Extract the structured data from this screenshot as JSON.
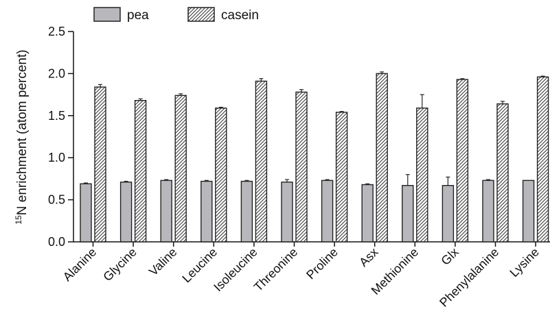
{
  "chart_data": {
    "type": "bar",
    "ylabel": "15N enrichment (atom percent)",
    "ylabel_superscript": "15",
    "ylabel_rest": "N enrichment (atom percent)",
    "xlabel": "",
    "ylim": [
      0,
      2.5
    ],
    "yticks": [
      "0.0",
      "0.5",
      "1.0",
      "1.5",
      "2.0",
      "2.5"
    ],
    "grid": false,
    "legend_position": "top-left",
    "categories": [
      "Alanine",
      "Glycine",
      "Valine",
      "Leucine",
      "Isoleucine",
      "Threonine",
      "Proline",
      "Asx",
      "Methionine",
      "Glx",
      "Phenylalanine",
      "Lysine"
    ],
    "series": [
      {
        "name": "pea",
        "fill": "#b8b8bc",
        "pattern": "solid",
        "values": [
          0.69,
          0.71,
          0.73,
          0.72,
          0.72,
          0.71,
          0.73,
          0.68,
          0.67,
          0.67,
          0.73,
          0.73
        ],
        "errors": [
          0.01,
          0.01,
          0.01,
          0.01,
          0.01,
          0.03,
          0.01,
          0.01,
          0.13,
          0.1,
          0.01,
          0.0
        ]
      },
      {
        "name": "casein",
        "fill": "#ffffff",
        "pattern": "diagonal-hatch",
        "values": [
          1.84,
          1.68,
          1.74,
          1.59,
          1.91,
          1.78,
          1.54,
          2.0,
          1.59,
          1.93,
          1.64,
          1.96
        ],
        "errors": [
          0.03,
          0.02,
          0.02,
          0.01,
          0.03,
          0.03,
          0.01,
          0.02,
          0.16,
          0.01,
          0.03,
          0.01
        ]
      }
    ]
  }
}
